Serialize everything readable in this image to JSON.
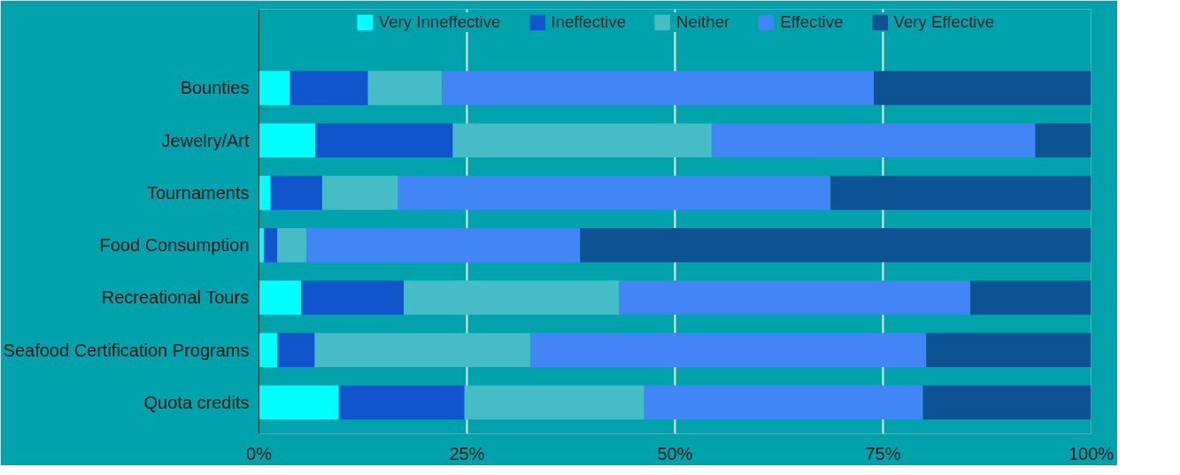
{
  "chart_data": {
    "type": "bar",
    "orientation": "horizontal",
    "stacked": true,
    "categories": [
      "Bounties",
      "Jewelry/Art",
      "Tournaments",
      "Food Consumption",
      "Recreational Tours",
      "Seafood Certification Programs",
      "Quota credits"
    ],
    "series": [
      {
        "name": "Very Inneffective",
        "color": "#00ffff",
        "values": [
          3.7,
          6.8,
          1.4,
          0.6,
          5.1,
          2.2,
          9.6
        ]
      },
      {
        "name": "Ineffective",
        "color": "#1155cc",
        "values": [
          9.4,
          16.5,
          6.2,
          1.6,
          12.3,
          4.5,
          15.1
        ]
      },
      {
        "name": "Neither",
        "color": "#45bcc6",
        "values": [
          8.9,
          31.1,
          9.1,
          3.5,
          25.9,
          25.9,
          21.6
        ]
      },
      {
        "name": "Effective",
        "color": "#4285f4",
        "values": [
          51.9,
          38.9,
          52.0,
          32.9,
          42.2,
          47.6,
          33.5
        ]
      },
      {
        "name": "Very Effective",
        "color": "#0d5394",
        "values": [
          26.1,
          6.7,
          31.3,
          61.4,
          14.5,
          19.8,
          20.2
        ]
      }
    ],
    "xlim": [
      0,
      100
    ],
    "xticks": [
      {
        "value": 0,
        "label": "0%"
      },
      {
        "value": 25,
        "label": "25%"
      },
      {
        "value": 50,
        "label": "50%"
      },
      {
        "value": 75,
        "label": "75%"
      },
      {
        "value": 100,
        "label": "100%"
      }
    ],
    "grid": "x",
    "legend": "top"
  }
}
